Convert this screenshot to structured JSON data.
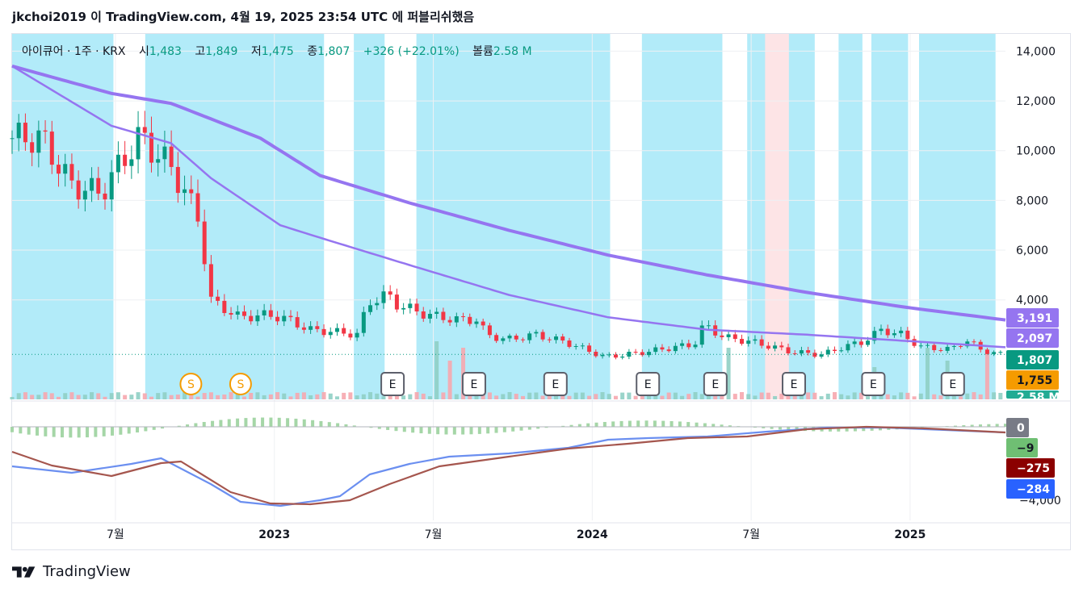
{
  "header": {
    "text": "jkchoi2019 이 TradingView.com, 4월 19, 2025 23:54 UTC 에 퍼블리쉬했음"
  },
  "legend": {
    "symbol": "아이큐어 · 1주 · KRX",
    "open_label": "시",
    "open": "1,483",
    "high_label": "고",
    "high": "1,849",
    "low_label": "저",
    "low": "1,475",
    "close_label": "종",
    "close": "1,807",
    "change": "+326 (+22.01%)",
    "volume_label": "볼륨",
    "volume": "2.58 M"
  },
  "footer": {
    "brand": "TradingView"
  },
  "colors": {
    "up": "#089981",
    "down": "#f23645",
    "bg_blue": "#b2ebf9",
    "bg_pink": "#fde4e6",
    "ma": "#9575f0",
    "macd": "#6b8ff0",
    "signal": "#a5564e",
    "hist_up": "#a5d6a7"
  },
  "chart_data": {
    "type": "candlestick",
    "x_ticks": [
      "7월",
      "2023",
      "7월",
      "2024",
      "7월",
      "2025"
    ],
    "y_ticks": [
      "14,000",
      "12,000",
      "10,000",
      "8,000",
      "6,000",
      "4,000"
    ],
    "y_range": [
      0,
      14500
    ],
    "price_badges": [
      {
        "label": "3,191",
        "value": 3191,
        "color": "#9575f0"
      },
      {
        "label": "2,097",
        "value": 2097,
        "color": "#9575f0"
      },
      {
        "label": "1,807",
        "value": 1807,
        "color": "#089981"
      },
      {
        "label": "1,755",
        "value": 1755,
        "color": "#f59b00"
      },
      {
        "label": "2.58 M",
        "value": 0,
        "color": "#22ab94"
      }
    ],
    "macd_badges": [
      {
        "label": "0",
        "color": "#787b86"
      },
      {
        "label": "−9",
        "color": "#6fbf73"
      },
      {
        "label": "−275",
        "color": "#8b0000"
      },
      {
        "label": "−284",
        "color": "#2962ff"
      }
    ],
    "macd_y_tick": "−4,000",
    "events": [
      {
        "label": "S",
        "kind": "split",
        "t": 0.18
      },
      {
        "label": "S",
        "kind": "split",
        "t": 0.23
      },
      {
        "label": "E",
        "kind": "earnings",
        "t": 0.383
      },
      {
        "label": "E",
        "kind": "earnings",
        "t": 0.465
      },
      {
        "label": "E",
        "kind": "earnings",
        "t": 0.547
      },
      {
        "label": "E",
        "kind": "earnings",
        "t": 0.64
      },
      {
        "label": "E",
        "kind": "earnings",
        "t": 0.708
      },
      {
        "label": "E",
        "kind": "earnings",
        "t": 0.787
      },
      {
        "label": "E",
        "kind": "earnings",
        "t": 0.867
      },
      {
        "label": "E",
        "kind": "earnings",
        "t": 0.947
      }
    ],
    "ma_long": [
      [
        0,
        13400
      ],
      [
        0.1,
        12300
      ],
      [
        0.16,
        11900
      ],
      [
        0.25,
        10500
      ],
      [
        0.31,
        9000
      ],
      [
        0.4,
        7900
      ],
      [
        0.5,
        6800
      ],
      [
        0.6,
        5800
      ],
      [
        0.7,
        5000
      ],
      [
        0.8,
        4300
      ],
      [
        0.9,
        3700
      ],
      [
        1.0,
        3191
      ]
    ],
    "ma_mid": [
      [
        0,
        13400
      ],
      [
        0.05,
        12200
      ],
      [
        0.1,
        11000
      ],
      [
        0.16,
        10300
      ],
      [
        0.2,
        8900
      ],
      [
        0.27,
        7000
      ],
      [
        0.31,
        6500
      ],
      [
        0.4,
        5400
      ],
      [
        0.5,
        4200
      ],
      [
        0.6,
        3300
      ],
      [
        0.7,
        2800
      ],
      [
        0.8,
        2600
      ],
      [
        0.9,
        2350
      ],
      [
        1.0,
        2097
      ]
    ],
    "price_path": [
      [
        0,
        10500
      ],
      [
        0.03,
        10500
      ],
      [
        0.06,
        8600
      ],
      [
        0.09,
        8300
      ],
      [
        0.11,
        9500
      ],
      [
        0.13,
        10600
      ],
      [
        0.14,
        10100
      ],
      [
        0.16,
        9400
      ],
      [
        0.19,
        7200
      ],
      [
        0.2,
        4000
      ],
      [
        0.23,
        3300
      ],
      [
        0.26,
        3400
      ],
      [
        0.28,
        3200
      ],
      [
        0.3,
        2800
      ],
      [
        0.33,
        2700
      ],
      [
        0.35,
        2600
      ],
      [
        0.36,
        3900
      ],
      [
        0.38,
        4200
      ],
      [
        0.39,
        3800
      ],
      [
        0.42,
        3400
      ],
      [
        0.45,
        3200
      ],
      [
        0.47,
        3200
      ],
      [
        0.48,
        2600
      ],
      [
        0.5,
        2400
      ],
      [
        0.53,
        2600
      ],
      [
        0.56,
        2300
      ],
      [
        0.6,
        1700
      ],
      [
        0.64,
        1900
      ],
      [
        0.67,
        2100
      ],
      [
        0.69,
        2200
      ],
      [
        0.7,
        3000
      ],
      [
        0.72,
        2500
      ],
      [
        0.75,
        2300
      ],
      [
        0.79,
        1900
      ],
      [
        0.82,
        1800
      ],
      [
        0.84,
        2100
      ],
      [
        0.86,
        2300
      ],
      [
        0.88,
        2800
      ],
      [
        0.9,
        2600
      ],
      [
        0.92,
        2100
      ],
      [
        0.95,
        2000
      ],
      [
        0.965,
        2400
      ],
      [
        0.98,
        2000
      ],
      [
        1.0,
        1807
      ]
    ]
  }
}
